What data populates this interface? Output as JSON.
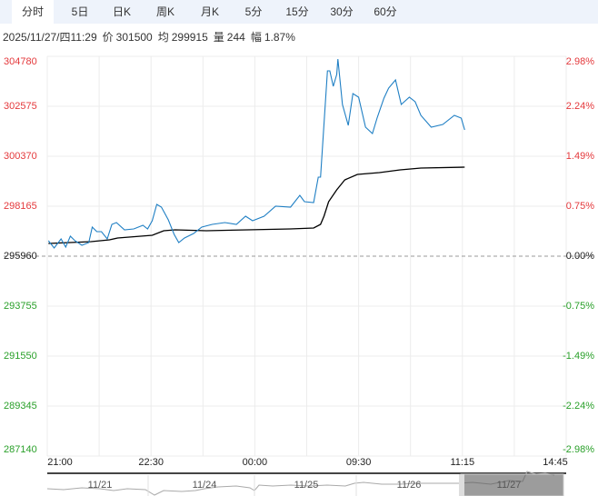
{
  "tabs": [
    {
      "label": "分时",
      "active": true
    },
    {
      "label": "5日"
    },
    {
      "label": "日K"
    },
    {
      "label": "周K"
    },
    {
      "label": "月K"
    },
    {
      "label": "5分"
    },
    {
      "label": "15分"
    },
    {
      "label": "30分"
    },
    {
      "label": "60分"
    }
  ],
  "info": {
    "datetime": "2025/11/27/四11:29",
    "price_label": "价",
    "price": "301500",
    "avg_label": "均",
    "avg": "299915",
    "volume_label": "量",
    "volume": "244",
    "change_label": "幅",
    "change": "1.87%"
  },
  "colors": {
    "up": "#e4393c",
    "down": "#2aa02a",
    "neutral": "#222222",
    "price_line": "#1f7fc4",
    "avg_line": "#000000",
    "grid": "#ececec",
    "tab_bar": "#eef3fb"
  },
  "chart_data": {
    "type": "line",
    "ylim": [
      287140,
      304780
    ],
    "base_price": 295960,
    "y_ticks_left": [
      "304780",
      "302575",
      "300370",
      "298165",
      "295960",
      "293755",
      "291550",
      "289345",
      "287140"
    ],
    "y_ticks_right": [
      "2.98%",
      "2.24%",
      "1.49%",
      "0.75%",
      "0.00%",
      "-0.75%",
      "-1.49%",
      "-2.24%",
      "-2.98%"
    ],
    "x_ticks": [
      "21:00",
      "22:30",
      "00:00",
      "09:30",
      "11:15",
      "14:45"
    ],
    "grid": true,
    "series": [
      {
        "key": "price",
        "points": [
          [
            "21:01",
            296642
          ],
          [
            "21:06",
            296321
          ],
          [
            "21:12",
            296722
          ],
          [
            "21:16",
            296361
          ],
          [
            "21:20",
            296842
          ],
          [
            "21:24",
            296642
          ],
          [
            "21:30",
            296441
          ],
          [
            "21:36",
            296561
          ],
          [
            "21:39",
            297243
          ],
          [
            "21:43",
            297042
          ],
          [
            "21:47",
            297042
          ],
          [
            "21:52",
            296722
          ],
          [
            "21:56",
            297363
          ],
          [
            "22:00",
            297443
          ],
          [
            "22:07",
            297123
          ],
          [
            "22:15",
            297163
          ],
          [
            "22:23",
            297323
          ],
          [
            "22:27",
            297163
          ],
          [
            "22:31",
            297524
          ],
          [
            "22:35",
            298245
          ],
          [
            "22:39",
            298125
          ],
          [
            "22:45",
            297564
          ],
          [
            "22:50",
            296922
          ],
          [
            "22:54",
            296561
          ],
          [
            "22:59",
            296762
          ],
          [
            "23:07",
            296962
          ],
          [
            "23:14",
            297243
          ],
          [
            "23:23",
            297363
          ],
          [
            "23:34",
            297443
          ],
          [
            "23:44",
            297363
          ],
          [
            "23:52",
            297724
          ],
          [
            "23:58",
            297524
          ],
          [
            "00:08",
            297724
          ],
          [
            "00:18",
            298165
          ],
          [
            "00:31",
            298125
          ],
          [
            "00:39",
            298646
          ],
          [
            "00:43",
            298365
          ],
          [
            "00:51",
            298325
          ],
          [
            "00:55",
            299448
          ],
          [
            "00:57",
            299448
          ],
          [
            "09:03",
            304138
          ],
          [
            "09:05",
            304138
          ],
          [
            "09:08",
            303457
          ],
          [
            "09:11",
            303978
          ],
          [
            "09:12",
            304660
          ],
          [
            "09:16",
            302655
          ],
          [
            "09:21",
            301733
          ],
          [
            "09:25",
            303136
          ],
          [
            "09:30",
            302976
          ],
          [
            "09:36",
            301653
          ],
          [
            "09:42",
            301372
          ],
          [
            "09:46",
            302054
          ],
          [
            "09:52",
            302936
          ],
          [
            "09:56",
            303377
          ],
          [
            "10:02",
            303737
          ],
          [
            "10:07",
            302655
          ],
          [
            "10:14",
            302976
          ],
          [
            "10:34",
            302775
          ],
          [
            "10:39",
            302174
          ],
          [
            "10:48",
            301653
          ],
          [
            "10:58",
            301773
          ],
          [
            "11:08",
            302174
          ],
          [
            "11:14",
            302054
          ],
          [
            "11:17",
            301533
          ]
        ]
      },
      {
        "key": "average",
        "points": [
          [
            "21:01",
            296521
          ],
          [
            "21:38",
            296601
          ],
          [
            "21:54",
            296682
          ],
          [
            "22:01",
            296762
          ],
          [
            "22:31",
            296882
          ],
          [
            "22:41",
            297083
          ],
          [
            "22:51",
            297123
          ],
          [
            "23:18",
            297083
          ],
          [
            "23:54",
            297123
          ],
          [
            "00:31",
            297163
          ],
          [
            "00:51",
            297203
          ],
          [
            "00:57",
            297363
          ],
          [
            "09:00",
            297724
          ],
          [
            "09:04",
            298365
          ],
          [
            "09:11",
            298887
          ],
          [
            "09:18",
            299328
          ],
          [
            "09:29",
            299568
          ],
          [
            "09:48",
            299648
          ],
          [
            "10:06",
            299769
          ],
          [
            "10:39",
            299849
          ],
          [
            "11:17",
            299889
          ]
        ]
      }
    ]
  },
  "navigator": {
    "dates": [
      "11/21",
      "11/24",
      "11/25",
      "11/26",
      "11/27"
    ]
  }
}
